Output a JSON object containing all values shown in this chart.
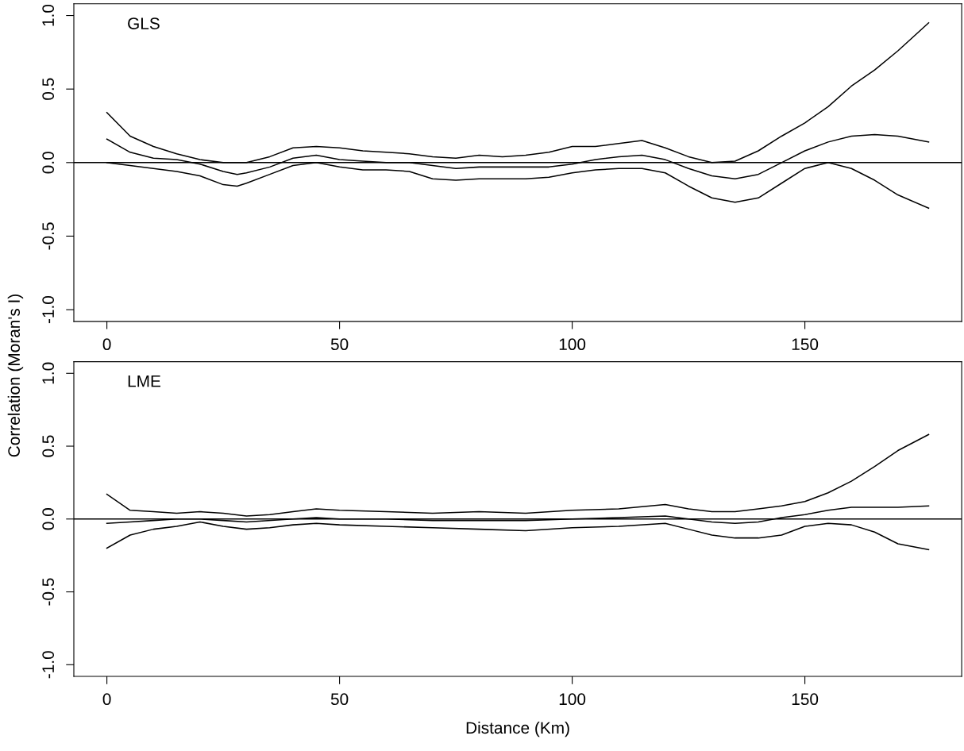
{
  "chart_data": [
    {
      "type": "line",
      "annotations": [
        "GLS"
      ],
      "xlim": [
        -7.1,
        183.7
      ],
      "ylim": [
        -1.08,
        1.08
      ],
      "xticks": [
        0,
        50,
        100,
        150
      ],
      "yticks": [
        {
          "value": -1.0,
          "label": "-1.0"
        },
        {
          "value": -0.5,
          "label": "-0.5"
        },
        {
          "value": 0.0,
          "label": "0.0"
        },
        {
          "value": 0.5,
          "label": "0.5"
        },
        {
          "value": 1.0,
          "label": "1.0"
        }
      ],
      "grid": false,
      "marker": "none",
      "line_style": "solid",
      "ref_lines": [
        {
          "axis": "y",
          "value": 0,
          "color": "#000000"
        }
      ],
      "series": [
        {
          "color": "#000000",
          "x": [
            0,
            5,
            10,
            15,
            20,
            25,
            30,
            35,
            40,
            45,
            50,
            55,
            60,
            65,
            70,
            75,
            80,
            85,
            90,
            95,
            100,
            105,
            110,
            115,
            120,
            125,
            130,
            135,
            140,
            145,
            150,
            155,
            160,
            165,
            170,
            176.6
          ],
          "values": [
            0.34,
            0.18,
            0.11,
            0.06,
            0.02,
            0.0,
            0.0,
            0.04,
            0.1,
            0.11,
            0.1,
            0.08,
            0.07,
            0.06,
            0.04,
            0.03,
            0.05,
            0.04,
            0.05,
            0.07,
            0.11,
            0.11,
            0.13,
            0.15,
            0.1,
            0.04,
            0.0,
            0.01,
            0.08,
            0.18,
            0.27,
            0.38,
            0.52,
            0.63,
            0.76,
            0.95
          ]
        },
        {
          "color": "#000000",
          "x": [
            0,
            5,
            10,
            15,
            20,
            25,
            28,
            30,
            35,
            40,
            45,
            50,
            55,
            60,
            65,
            70,
            75,
            80,
            90,
            95,
            100,
            105,
            110,
            115,
            120,
            125,
            130,
            135,
            140,
            145,
            150,
            155,
            160,
            165,
            170,
            176.6
          ],
          "values": [
            0.16,
            0.07,
            0.03,
            0.02,
            -0.01,
            -0.06,
            -0.08,
            -0.07,
            -0.03,
            0.03,
            0.05,
            0.02,
            0.01,
            0.0,
            0.0,
            -0.02,
            -0.04,
            -0.03,
            -0.03,
            -0.03,
            -0.01,
            0.02,
            0.04,
            0.05,
            0.02,
            -0.04,
            -0.09,
            -0.11,
            -0.08,
            0.0,
            0.08,
            0.14,
            0.18,
            0.19,
            0.18,
            0.14
          ]
        },
        {
          "color": "#000000",
          "x": [
            0,
            5,
            10,
            15,
            20,
            25,
            28,
            30,
            35,
            40,
            45,
            50,
            55,
            60,
            65,
            70,
            75,
            80,
            90,
            95,
            100,
            105,
            110,
            115,
            120,
            125,
            130,
            135,
            140,
            145,
            150,
            155,
            160,
            165,
            170,
            176.6
          ],
          "values": [
            0.0,
            -0.02,
            -0.04,
            -0.06,
            -0.09,
            -0.15,
            -0.16,
            -0.14,
            -0.08,
            -0.02,
            0.0,
            -0.03,
            -0.05,
            -0.05,
            -0.06,
            -0.11,
            -0.12,
            -0.11,
            -0.11,
            -0.1,
            -0.07,
            -0.05,
            -0.04,
            -0.04,
            -0.07,
            -0.16,
            -0.24,
            -0.27,
            -0.24,
            -0.14,
            -0.04,
            0.0,
            -0.04,
            -0.12,
            -0.22,
            -0.31
          ]
        }
      ]
    },
    {
      "type": "line",
      "annotations": [
        "LME"
      ],
      "xlabel": "Distance (Km)",
      "ylabel": "Correlation (Moran's I)",
      "xlim": [
        -7.1,
        183.7
      ],
      "ylim": [
        -1.08,
        1.08
      ],
      "xticks": [
        0,
        50,
        100,
        150
      ],
      "yticks": [
        {
          "value": -1.0,
          "label": "-1.0"
        },
        {
          "value": -0.5,
          "label": "-0.5"
        },
        {
          "value": 0.0,
          "label": "0.0"
        },
        {
          "value": 0.5,
          "label": "0.5"
        },
        {
          "value": 1.0,
          "label": "1.0"
        }
      ],
      "grid": false,
      "marker": "none",
      "line_style": "solid",
      "ref_lines": [
        {
          "axis": "y",
          "value": 0,
          "color": "#000000"
        }
      ],
      "series": [
        {
          "color": "#000000",
          "x": [
            0,
            5,
            10,
            15,
            20,
            25,
            30,
            35,
            40,
            45,
            50,
            60,
            70,
            80,
            90,
            100,
            110,
            120,
            125,
            130,
            135,
            140,
            145,
            150,
            155,
            160,
            165,
            170,
            176.6
          ],
          "values": [
            0.17,
            0.06,
            0.05,
            0.04,
            0.05,
            0.04,
            0.02,
            0.03,
            0.05,
            0.07,
            0.06,
            0.05,
            0.04,
            0.05,
            0.04,
            0.06,
            0.07,
            0.1,
            0.07,
            0.05,
            0.05,
            0.07,
            0.09,
            0.12,
            0.18,
            0.26,
            0.36,
            0.47,
            0.58
          ]
        },
        {
          "color": "#000000",
          "x": [
            0,
            5,
            10,
            15,
            20,
            25,
            30,
            40,
            45,
            50,
            60,
            70,
            80,
            90,
            100,
            110,
            120,
            130,
            135,
            140,
            145,
            150,
            155,
            160,
            170,
            176.6
          ],
          "values": [
            -0.03,
            -0.02,
            -0.01,
            0.0,
            0.0,
            -0.01,
            -0.02,
            0.0,
            0.01,
            0.0,
            0.0,
            -0.01,
            -0.01,
            -0.01,
            0.0,
            0.01,
            0.02,
            -0.02,
            -0.03,
            -0.02,
            0.01,
            0.03,
            0.06,
            0.08,
            0.08,
            0.09
          ]
        },
        {
          "color": "#000000",
          "x": [
            0,
            5,
            10,
            15,
            20,
            25,
            30,
            35,
            40,
            45,
            50,
            60,
            70,
            80,
            90,
            100,
            110,
            120,
            125,
            130,
            135,
            140,
            145,
            150,
            155,
            160,
            165,
            170,
            176.6
          ],
          "values": [
            -0.2,
            -0.11,
            -0.07,
            -0.05,
            -0.02,
            -0.05,
            -0.07,
            -0.06,
            -0.04,
            -0.03,
            -0.04,
            -0.05,
            -0.06,
            -0.07,
            -0.08,
            -0.06,
            -0.05,
            -0.03,
            -0.07,
            -0.11,
            -0.13,
            -0.13,
            -0.11,
            -0.05,
            -0.03,
            -0.04,
            -0.09,
            -0.17,
            -0.21
          ]
        }
      ]
    }
  ]
}
